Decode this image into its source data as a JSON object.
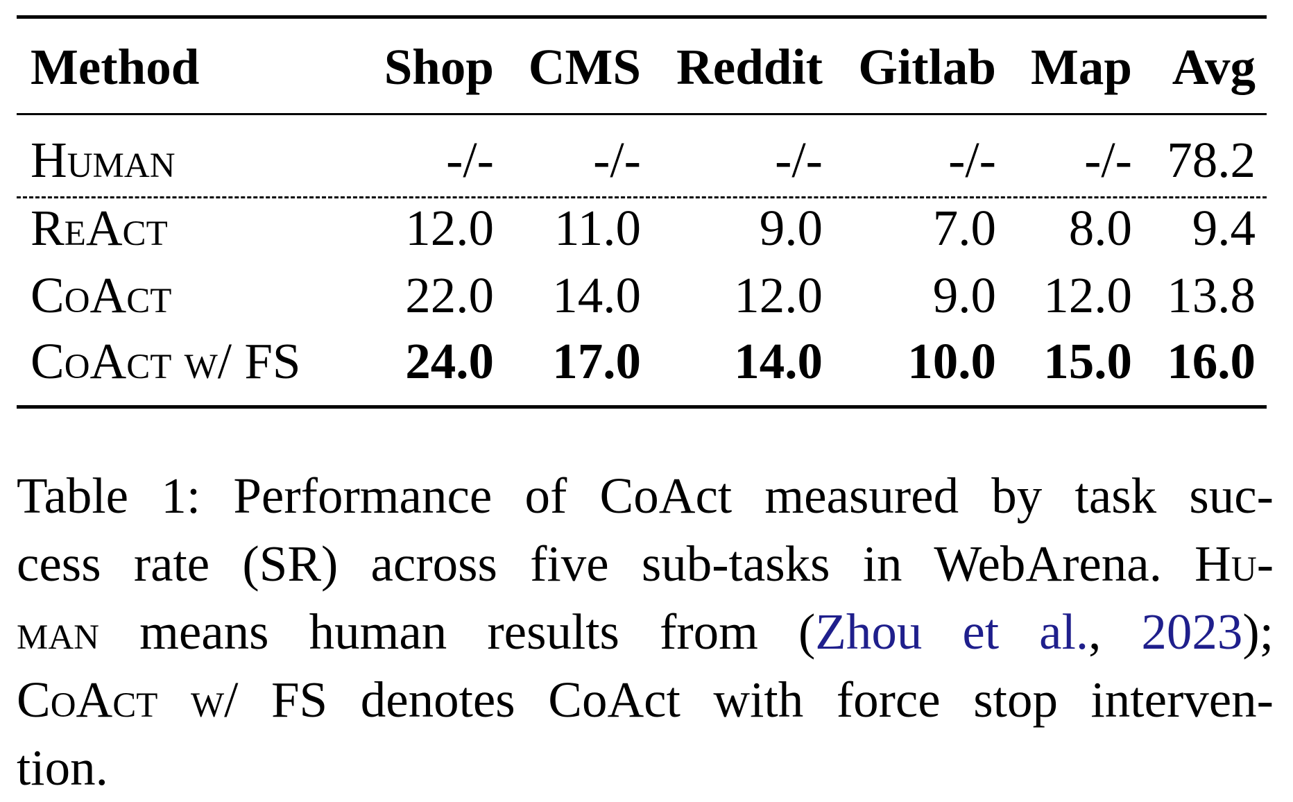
{
  "table": {
    "headers": [
      "Method",
      "Shop",
      "CMS",
      "Reddit",
      "Gitlab",
      "Map",
      "Avg"
    ],
    "rows": [
      {
        "method": "Human",
        "values": [
          "-/-",
          "-/-",
          "-/-",
          "-/-",
          "-/-",
          "78.2"
        ],
        "bold": false
      },
      {
        "method": "ReAct",
        "values": [
          "12.0",
          "11.0",
          "9.0",
          "7.0",
          "8.0",
          "9.4"
        ],
        "bold": false
      },
      {
        "method": "CoAct",
        "values": [
          "22.0",
          "14.0",
          "12.0",
          "9.0",
          "12.0",
          "13.8"
        ],
        "bold": false
      },
      {
        "method": "CoAct w/ FS",
        "values": [
          "24.0",
          "17.0",
          "14.0",
          "10.0",
          "15.0",
          "16.0"
        ],
        "bold": true
      }
    ]
  },
  "caption": {
    "line1": "Table 1: Performance of CoAct measured by task suc-",
    "line2_text": "cess rate (SR) across five sub-tasks in WebArena.",
    "line2_sc": "Hu-",
    "line3_sc": "man",
    "line3_text": "means human results from (",
    "line3_cite_author": "Zhou et al.",
    "line3_comma": ", ",
    "line3_cite_year": "2023",
    "line3_end": ");",
    "line4_sc": "CoAct w/",
    "line4_text": "FS denotes CoAct with force stop interven-",
    "line5": "tion."
  },
  "colors": {
    "citation": "#1f1f8c",
    "text": "#000000"
  }
}
